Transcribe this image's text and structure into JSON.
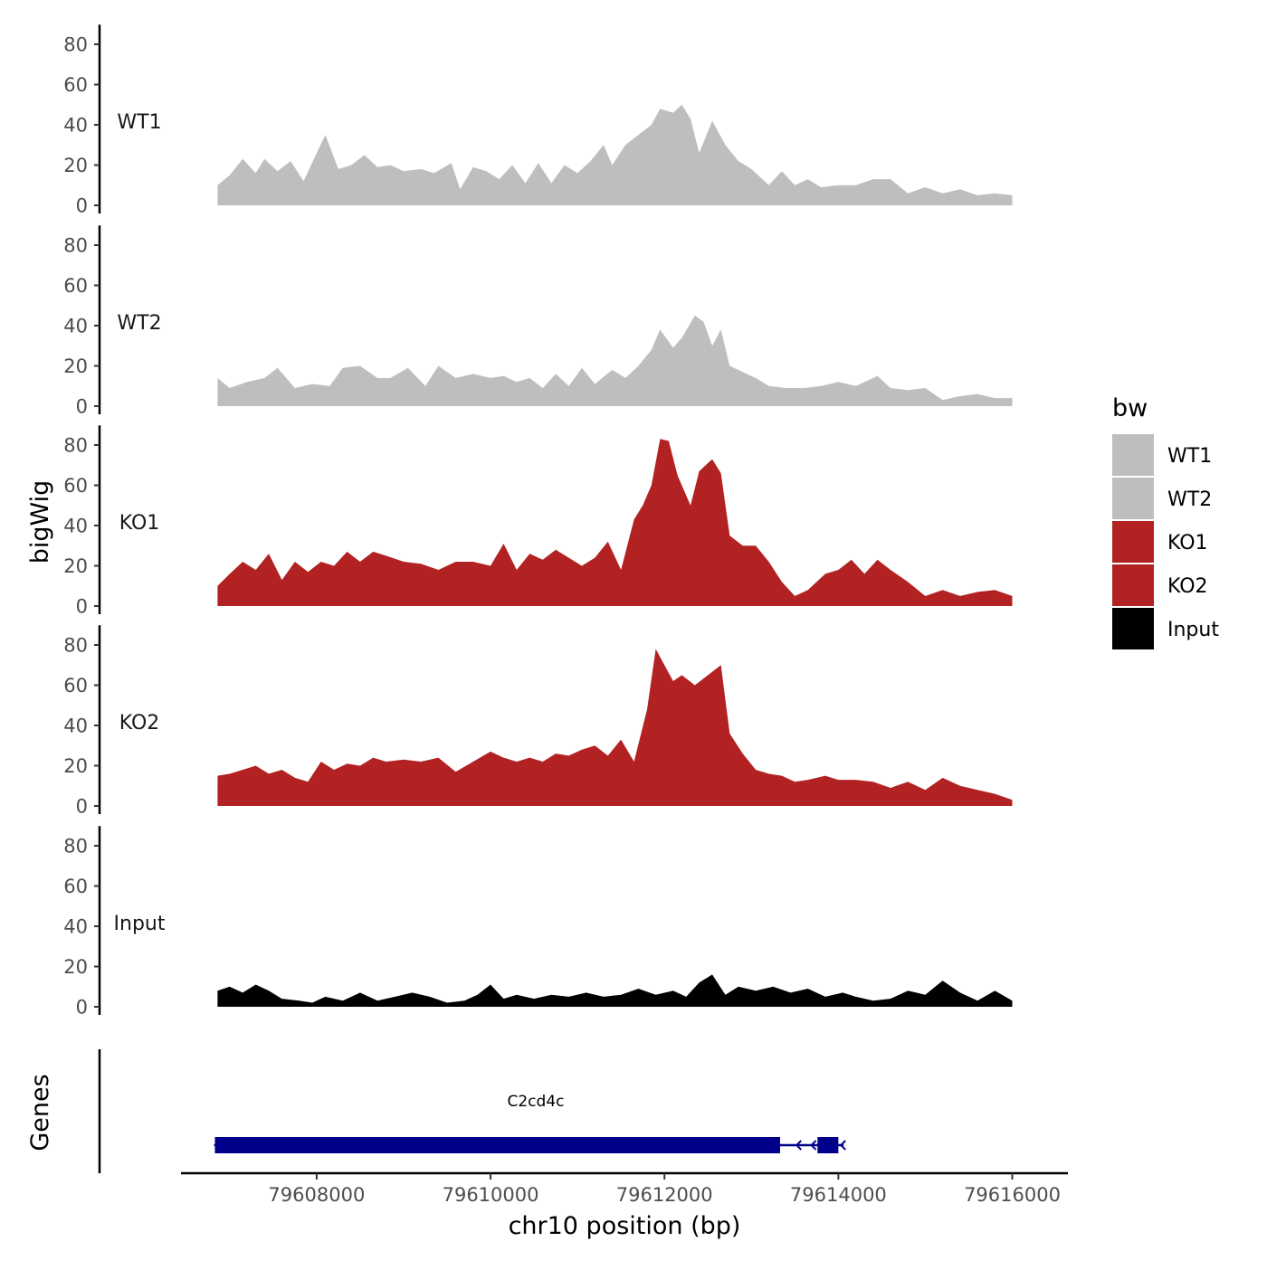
{
  "chart_data": {
    "type": "area",
    "ylabel": "bigWig",
    "genes_label": "Genes",
    "xlabel": "chr10 position (bp)",
    "xlim": [
      79606440,
      79616640
    ],
    "data_range": [
      79606860,
      79616000
    ],
    "ylim": [
      0,
      88
    ],
    "y_ticks": [
      0,
      20,
      40,
      60,
      80
    ],
    "x_ticks": [
      79608000,
      79610000,
      79612000,
      79614000,
      79616000
    ],
    "x_tick_labels": [
      "79608000",
      "79610000",
      "79612000",
      "79614000",
      "79616000"
    ],
    "legend": {
      "title": "bw",
      "placement": "right"
    },
    "colors": {
      "WT1": "#bebebe",
      "WT2": "#bebebe",
      "KO1": "#b22222",
      "KO2": "#b22222",
      "Input": "#000000",
      "gene": "#00008b"
    },
    "series": [
      {
        "name": "WT1",
        "values": [
          [
            79606860,
            10
          ],
          [
            79607000,
            15
          ],
          [
            79607150,
            23
          ],
          [
            79607300,
            16
          ],
          [
            79607400,
            23
          ],
          [
            79607550,
            17
          ],
          [
            79607700,
            22
          ],
          [
            79607850,
            12
          ],
          [
            79608000,
            26
          ],
          [
            79608100,
            35
          ],
          [
            79608250,
            18
          ],
          [
            79608400,
            20
          ],
          [
            79608550,
            25
          ],
          [
            79608700,
            19
          ],
          [
            79608850,
            20
          ],
          [
            79609000,
            17
          ],
          [
            79609200,
            18
          ],
          [
            79609350,
            16
          ],
          [
            79609550,
            21
          ],
          [
            79609650,
            8
          ],
          [
            79609800,
            19
          ],
          [
            79609950,
            17
          ],
          [
            79610100,
            13
          ],
          [
            79610250,
            20
          ],
          [
            79610400,
            11
          ],
          [
            79610550,
            21
          ],
          [
            79610700,
            11
          ],
          [
            79610850,
            20
          ],
          [
            79611000,
            16
          ],
          [
            79611150,
            22
          ],
          [
            79611300,
            30
          ],
          [
            79611400,
            20
          ],
          [
            79611550,
            30
          ],
          [
            79611700,
            35
          ],
          [
            79611850,
            40
          ],
          [
            79611950,
            48
          ],
          [
            79612100,
            46
          ],
          [
            79612200,
            50
          ],
          [
            79612300,
            43
          ],
          [
            79612400,
            26
          ],
          [
            79612550,
            42
          ],
          [
            79612700,
            30
          ],
          [
            79612850,
            22
          ],
          [
            79613000,
            18
          ],
          [
            79613200,
            10
          ],
          [
            79613350,
            17
          ],
          [
            79613500,
            10
          ],
          [
            79613650,
            13
          ],
          [
            79613800,
            9
          ],
          [
            79614000,
            10
          ],
          [
            79614200,
            10
          ],
          [
            79614400,
            13
          ],
          [
            79614600,
            13
          ],
          [
            79614800,
            6
          ],
          [
            79615000,
            9
          ],
          [
            79615200,
            6
          ],
          [
            79615400,
            8
          ],
          [
            79615600,
            5
          ],
          [
            79615800,
            6
          ],
          [
            79616000,
            5
          ]
        ]
      },
      {
        "name": "WT2",
        "values": [
          [
            79606860,
            14
          ],
          [
            79607000,
            9
          ],
          [
            79607200,
            12
          ],
          [
            79607400,
            14
          ],
          [
            79607550,
            19
          ],
          [
            79607750,
            9
          ],
          [
            79607950,
            11
          ],
          [
            79608150,
            10
          ],
          [
            79608300,
            19
          ],
          [
            79608500,
            20
          ],
          [
            79608700,
            14
          ],
          [
            79608850,
            14
          ],
          [
            79609050,
            19
          ],
          [
            79609250,
            10
          ],
          [
            79609400,
            20
          ],
          [
            79609600,
            14
          ],
          [
            79609800,
            16
          ],
          [
            79610000,
            14
          ],
          [
            79610150,
            15
          ],
          [
            79610300,
            12
          ],
          [
            79610450,
            14
          ],
          [
            79610600,
            9
          ],
          [
            79610750,
            16
          ],
          [
            79610900,
            10
          ],
          [
            79611050,
            19
          ],
          [
            79611200,
            11
          ],
          [
            79611400,
            18
          ],
          [
            79611550,
            14
          ],
          [
            79611700,
            20
          ],
          [
            79611850,
            28
          ],
          [
            79611950,
            38
          ],
          [
            79612100,
            29
          ],
          [
            79612200,
            34
          ],
          [
            79612350,
            45
          ],
          [
            79612450,
            42
          ],
          [
            79612550,
            30
          ],
          [
            79612650,
            38
          ],
          [
            79612750,
            20
          ],
          [
            79612900,
            17
          ],
          [
            79613050,
            14
          ],
          [
            79613200,
            10
          ],
          [
            79613400,
            9
          ],
          [
            79613600,
            9
          ],
          [
            79613800,
            10
          ],
          [
            79614000,
            12
          ],
          [
            79614200,
            10
          ],
          [
            79614450,
            15
          ],
          [
            79614600,
            9
          ],
          [
            79614800,
            8
          ],
          [
            79615000,
            9
          ],
          [
            79615200,
            3
          ],
          [
            79615400,
            5
          ],
          [
            79615600,
            6
          ],
          [
            79615800,
            4
          ],
          [
            79616000,
            4
          ]
        ]
      },
      {
        "name": "KO1",
        "values": [
          [
            79606860,
            10
          ],
          [
            79607000,
            16
          ],
          [
            79607150,
            22
          ],
          [
            79607300,
            18
          ],
          [
            79607450,
            26
          ],
          [
            79607600,
            13
          ],
          [
            79607750,
            22
          ],
          [
            79607900,
            17
          ],
          [
            79608050,
            22
          ],
          [
            79608200,
            20
          ],
          [
            79608350,
            27
          ],
          [
            79608500,
            22
          ],
          [
            79608650,
            27
          ],
          [
            79608800,
            25
          ],
          [
            79609000,
            22
          ],
          [
            79609200,
            21
          ],
          [
            79609400,
            18
          ],
          [
            79609600,
            22
          ],
          [
            79609800,
            22
          ],
          [
            79610000,
            20
          ],
          [
            79610150,
            31
          ],
          [
            79610300,
            18
          ],
          [
            79610450,
            26
          ],
          [
            79610600,
            23
          ],
          [
            79610750,
            28
          ],
          [
            79610900,
            24
          ],
          [
            79611050,
            20
          ],
          [
            79611200,
            24
          ],
          [
            79611350,
            32
          ],
          [
            79611500,
            18
          ],
          [
            79611650,
            43
          ],
          [
            79611750,
            50
          ],
          [
            79611850,
            60
          ],
          [
            79611950,
            83
          ],
          [
            79612050,
            82
          ],
          [
            79612150,
            65
          ],
          [
            79612300,
            50
          ],
          [
            79612400,
            67
          ],
          [
            79612550,
            73
          ],
          [
            79612650,
            66
          ],
          [
            79612750,
            35
          ],
          [
            79612900,
            30
          ],
          [
            79613050,
            30
          ],
          [
            79613200,
            22
          ],
          [
            79613350,
            12
          ],
          [
            79613500,
            5
          ],
          [
            79613650,
            8
          ],
          [
            79613850,
            16
          ],
          [
            79614000,
            18
          ],
          [
            79614150,
            23
          ],
          [
            79614300,
            16
          ],
          [
            79614450,
            23
          ],
          [
            79614600,
            18
          ],
          [
            79614800,
            12
          ],
          [
            79615000,
            5
          ],
          [
            79615200,
            8
          ],
          [
            79615400,
            5
          ],
          [
            79615600,
            7
          ],
          [
            79615800,
            8
          ],
          [
            79616000,
            5
          ]
        ]
      },
      {
        "name": "KO2",
        "values": [
          [
            79606860,
            15
          ],
          [
            79607000,
            16
          ],
          [
            79607150,
            18
          ],
          [
            79607300,
            20
          ],
          [
            79607450,
            16
          ],
          [
            79607600,
            18
          ],
          [
            79607750,
            14
          ],
          [
            79607900,
            12
          ],
          [
            79608050,
            22
          ],
          [
            79608200,
            18
          ],
          [
            79608350,
            21
          ],
          [
            79608500,
            20
          ],
          [
            79608650,
            24
          ],
          [
            79608800,
            22
          ],
          [
            79609000,
            23
          ],
          [
            79609200,
            22
          ],
          [
            79609400,
            24
          ],
          [
            79609600,
            17
          ],
          [
            79609800,
            22
          ],
          [
            79610000,
            27
          ],
          [
            79610150,
            24
          ],
          [
            79610300,
            22
          ],
          [
            79610450,
            24
          ],
          [
            79610600,
            22
          ],
          [
            79610750,
            26
          ],
          [
            79610900,
            25
          ],
          [
            79611050,
            28
          ],
          [
            79611200,
            30
          ],
          [
            79611350,
            25
          ],
          [
            79611500,
            33
          ],
          [
            79611650,
            22
          ],
          [
            79611800,
            48
          ],
          [
            79611900,
            78
          ],
          [
            79612000,
            70
          ],
          [
            79612100,
            62
          ],
          [
            79612200,
            65
          ],
          [
            79612350,
            60
          ],
          [
            79612500,
            65
          ],
          [
            79612650,
            70
          ],
          [
            79612750,
            36
          ],
          [
            79612900,
            26
          ],
          [
            79613050,
            18
          ],
          [
            79613200,
            16
          ],
          [
            79613350,
            15
          ],
          [
            79613500,
            12
          ],
          [
            79613650,
            13
          ],
          [
            79613850,
            15
          ],
          [
            79614000,
            13
          ],
          [
            79614200,
            13
          ],
          [
            79614400,
            12
          ],
          [
            79614600,
            9
          ],
          [
            79614800,
            12
          ],
          [
            79615000,
            8
          ],
          [
            79615200,
            14
          ],
          [
            79615400,
            10
          ],
          [
            79615600,
            8
          ],
          [
            79615800,
            6
          ],
          [
            79616000,
            3
          ]
        ]
      },
      {
        "name": "Input",
        "values": [
          [
            79606860,
            8
          ],
          [
            79607000,
            10
          ],
          [
            79607150,
            7
          ],
          [
            79607300,
            11
          ],
          [
            79607450,
            8
          ],
          [
            79607600,
            4
          ],
          [
            79607800,
            3
          ],
          [
            79607950,
            2
          ],
          [
            79608100,
            5
          ],
          [
            79608300,
            3
          ],
          [
            79608500,
            7
          ],
          [
            79608700,
            3
          ],
          [
            79608900,
            5
          ],
          [
            79609100,
            7
          ],
          [
            79609300,
            5
          ],
          [
            79609500,
            2
          ],
          [
            79609700,
            3
          ],
          [
            79609850,
            6
          ],
          [
            79610000,
            11
          ],
          [
            79610150,
            4
          ],
          [
            79610300,
            6
          ],
          [
            79610500,
            4
          ],
          [
            79610700,
            6
          ],
          [
            79610900,
            5
          ],
          [
            79611100,
            7
          ],
          [
            79611300,
            5
          ],
          [
            79611500,
            6
          ],
          [
            79611700,
            9
          ],
          [
            79611900,
            6
          ],
          [
            79612100,
            8
          ],
          [
            79612250,
            5
          ],
          [
            79612400,
            12
          ],
          [
            79612550,
            16
          ],
          [
            79612700,
            6
          ],
          [
            79612850,
            10
          ],
          [
            79613050,
            8
          ],
          [
            79613250,
            10
          ],
          [
            79613450,
            7
          ],
          [
            79613650,
            9
          ],
          [
            79613850,
            5
          ],
          [
            79614050,
            7
          ],
          [
            79614200,
            5
          ],
          [
            79614400,
            3
          ],
          [
            79614600,
            4
          ],
          [
            79614800,
            8
          ],
          [
            79615000,
            6
          ],
          [
            79615200,
            13
          ],
          [
            79615400,
            7
          ],
          [
            79615600,
            3
          ],
          [
            79615800,
            8
          ],
          [
            79616000,
            3
          ]
        ]
      }
    ],
    "gene": {
      "name": "C2cd4c",
      "start": 79606830,
      "end": 79614060,
      "exons": [
        [
          79606830,
          79613330
        ],
        [
          79613760,
          79614000
        ]
      ],
      "strand": "-"
    }
  }
}
